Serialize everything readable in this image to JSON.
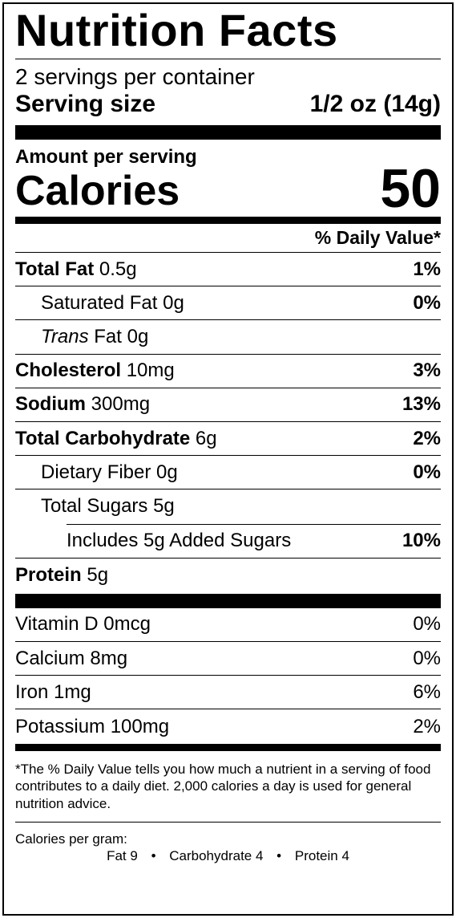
{
  "title": "Nutrition Facts",
  "servings_per_container": "2 servings per container",
  "serving_size": {
    "label": "Serving size",
    "value": "1/2 oz (14g)"
  },
  "amount_per_serving": "Amount per serving",
  "calories": {
    "label": "Calories",
    "value": "50"
  },
  "daily_value_header": "% Daily Value*",
  "nutrients": [
    {
      "name": "Total Fat",
      "amount": "0.5g",
      "dv": "1%"
    },
    {
      "name": "Saturated Fat",
      "amount": "0g",
      "dv": "0%"
    },
    {
      "name_italic": "Trans",
      "name": "Fat",
      "amount": "0g",
      "dv": ""
    },
    {
      "name": "Cholesterol",
      "amount": "10mg",
      "dv": "3%"
    },
    {
      "name": "Sodium",
      "amount": "300mg",
      "dv": "13%"
    },
    {
      "name": "Total Carbohydrate",
      "amount": "6g",
      "dv": "2%"
    },
    {
      "name": "Dietary Fiber",
      "amount": "0g",
      "dv": "0%"
    },
    {
      "name": "Total Sugars",
      "amount": "5g",
      "dv": ""
    },
    {
      "text": "Includes 5g Added Sugars",
      "dv": "10%"
    },
    {
      "name": "Protein",
      "amount": "5g",
      "dv": ""
    }
  ],
  "vitamins": [
    {
      "text": "Vitamin D 0mcg",
      "dv": "0%"
    },
    {
      "text": "Calcium 8mg",
      "dv": "0%"
    },
    {
      "text": "Iron 1mg",
      "dv": "6%"
    },
    {
      "text": "Potassium 100mg",
      "dv": "2%"
    }
  ],
  "footnote": "*The % Daily Value tells you how much a nutrient in a serving of food contributes to a daily diet. 2,000 calories a day is used for general nutrition advice.",
  "calories_per_gram": {
    "label": "Calories per gram:",
    "fat": "Fat 9",
    "carbohydrate": "Carbohydrate 4",
    "protein": "Protein 4",
    "separator": "•"
  }
}
